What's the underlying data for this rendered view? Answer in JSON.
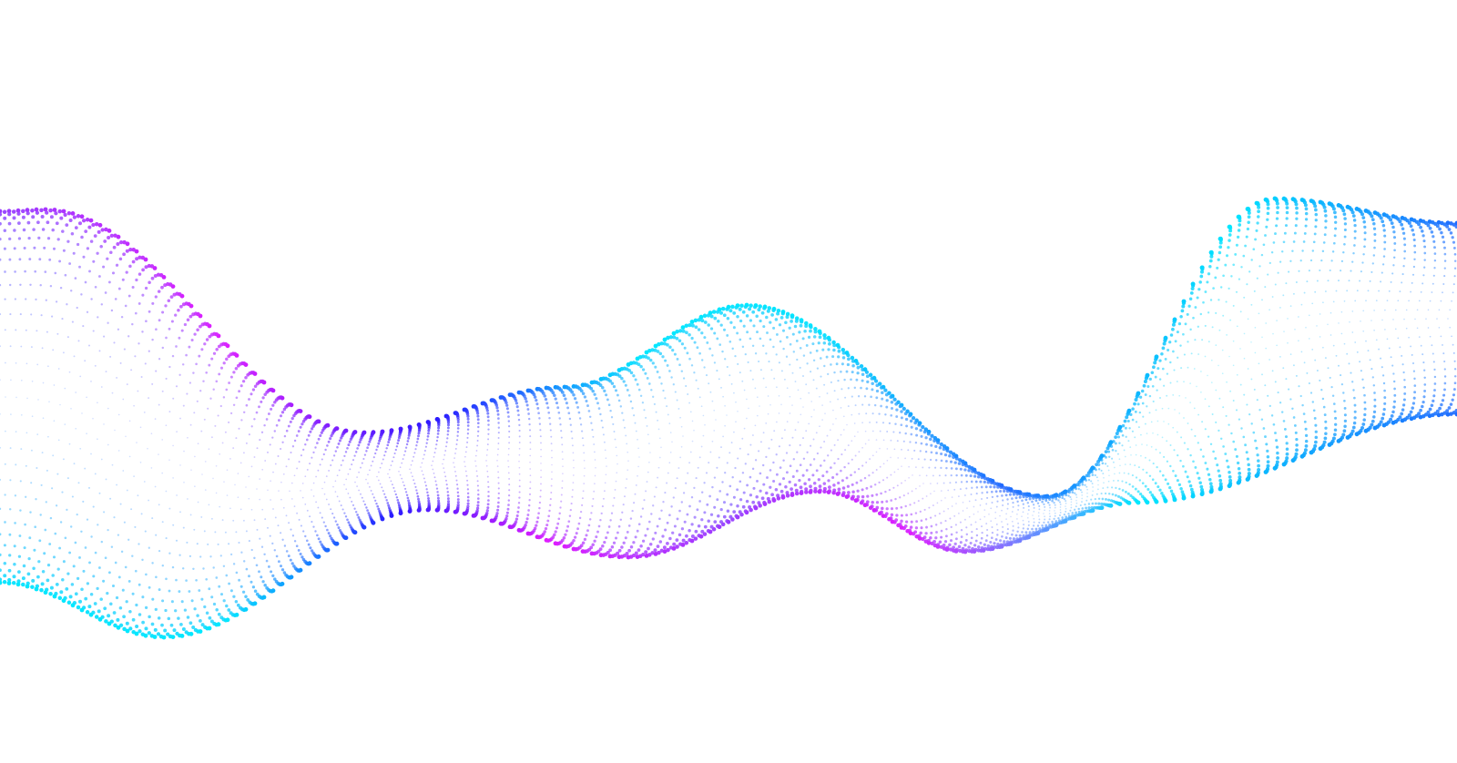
{
  "background": "#ffffff",
  "palette": {
    "cyan": "#00e8ff",
    "blue": "#1f6bff",
    "indigo": "#2a1cff",
    "violet": "#9a3cff",
    "magenta": "#e01cff"
  }
}
